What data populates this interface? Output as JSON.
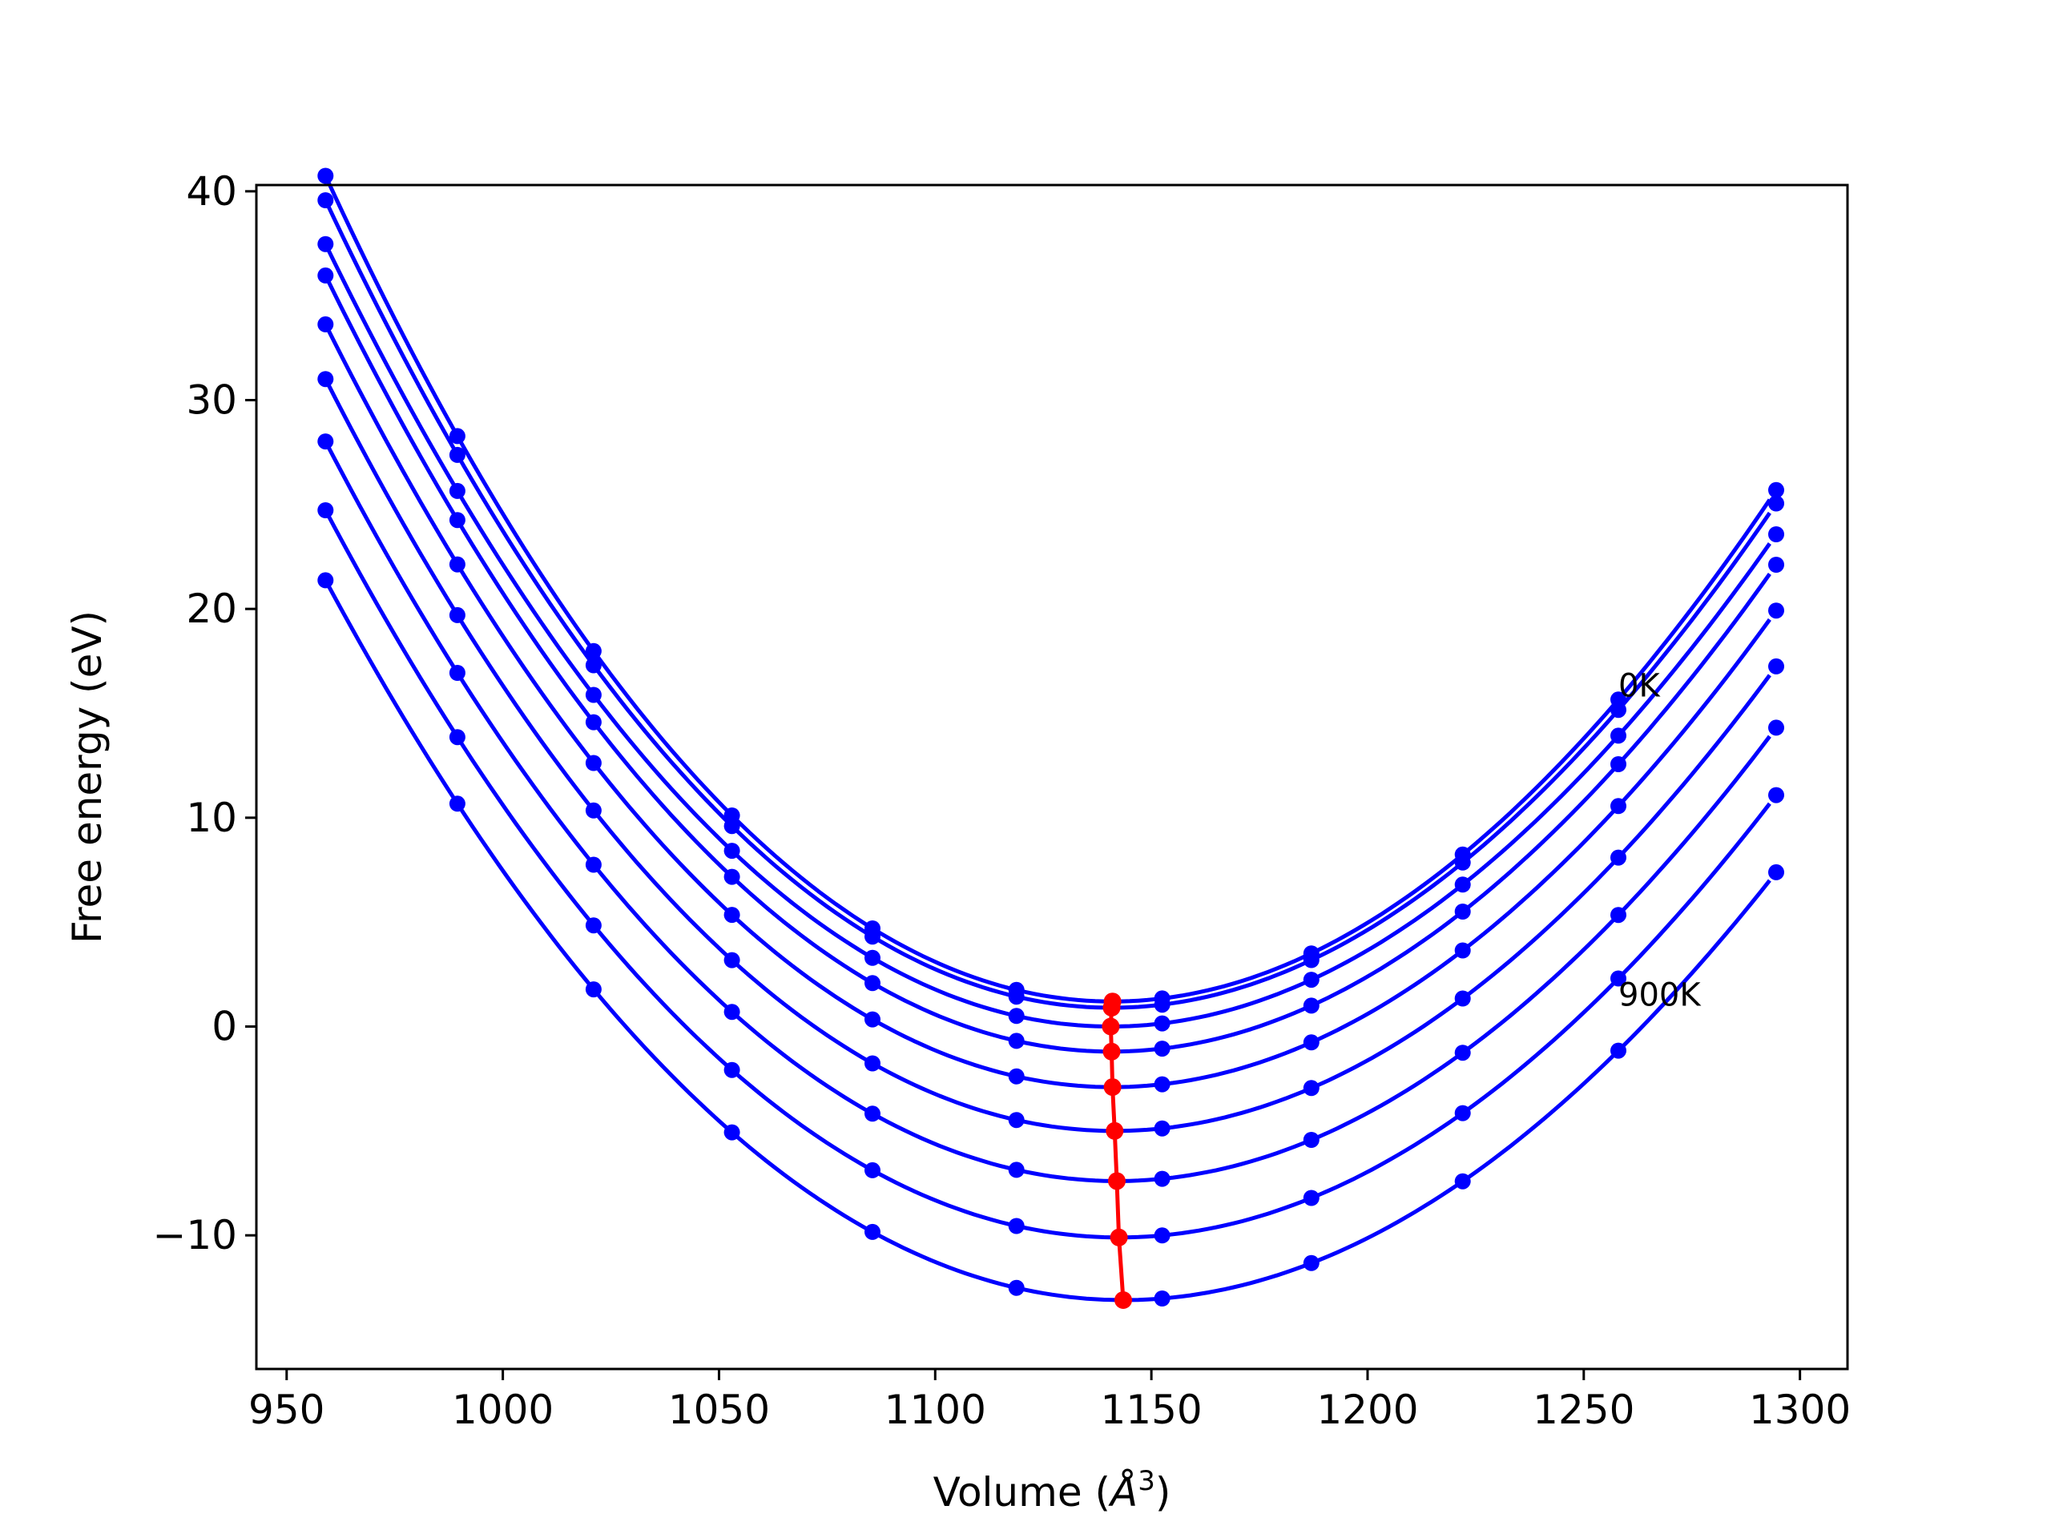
{
  "chart_data": {
    "type": "line",
    "title": "",
    "xlabel": "Volume (Å³)",
    "xlabel_main": "Volume (",
    "xlabel_unit": "Å",
    "xlabel_sup": "3",
    "xlabel_close": ")",
    "ylabel": "Free energy (eV)",
    "xlim": [
      943,
      1311
    ],
    "ylim": [
      -16.4,
      40.3
    ],
    "xticks": [
      950,
      1000,
      1050,
      1100,
      1150,
      1200,
      1250,
      1300
    ],
    "yticks": [
      -10,
      0,
      10,
      20,
      30,
      40
    ],
    "ytick_labels": [
      "−10",
      "0",
      "10",
      "20",
      "30",
      "40"
    ],
    "grid": false,
    "legend": "none",
    "volumes": [
      959.0,
      989.5,
      1021.0,
      1053.0,
      1085.5,
      1118.8,
      1152.5,
      1187.0,
      1222.0,
      1258.0,
      1294.5
    ],
    "fit_curves": [
      {
        "name": "0K",
        "v0": 1141.0,
        "f0": 1.2,
        "b": 0.00111,
        "c": -4.6e-07
      },
      {
        "v0": 1140.8,
        "f0": 0.9,
        "b": 0.00109,
        "c": -4.4e-07
      },
      {
        "v0": 1140.6,
        "f0": 0.0,
        "b": 0.00106,
        "c": -4.2e-07
      },
      {
        "v0": 1140.8,
        "f0": -1.2,
        "b": 0.00105,
        "c": -4.1e-07
      },
      {
        "v0": 1141.0,
        "f0": -2.9,
        "b": 0.00103,
        "c": -4e-07
      },
      {
        "v0": 1141.5,
        "f0": -5.0,
        "b": 0.00101,
        "c": -3.9e-07
      },
      {
        "v0": 1142.0,
        "f0": -7.4,
        "b": 0.00099,
        "c": -3.7e-07
      },
      {
        "v0": 1142.5,
        "f0": -10.1,
        "b": 0.00097,
        "c": -3.5e-07
      },
      {
        "name": "900K",
        "v0": 1143.5,
        "f0": -13.1,
        "b": 0.00095,
        "c": -3.4e-07
      }
    ],
    "series_style": {
      "points_color": "#0000ff",
      "curve_color": "#0000ff",
      "minima_color": "#ff0000"
    },
    "minima": {
      "x": [
        1141.0,
        1140.8,
        1140.6,
        1140.8,
        1141.0,
        1141.5,
        1142.0,
        1142.5,
        1143.5
      ],
      "y": [
        1.2,
        0.9,
        0.0,
        -1.2,
        -2.9,
        -5.0,
        -7.4,
        -10.1,
        -13.1
      ]
    },
    "annotations": [
      {
        "text": "0K",
        "x": 1258,
        "y": 15.8
      },
      {
        "text": "900K",
        "x": 1258,
        "y": 1.0
      }
    ]
  }
}
